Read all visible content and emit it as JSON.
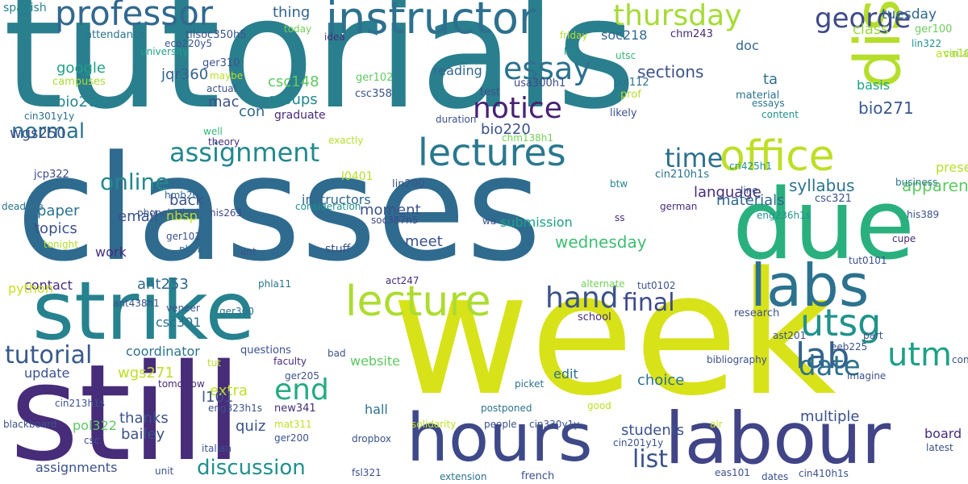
{
  "title": "",
  "colors": {
    "background": "#ffffff",
    "palette": [
      "#440154",
      "#3b528b",
      "#21908d",
      "#5dc963",
      "#fde725"
    ]
  },
  "words": [
    {
      "text": "tutorials",
      "color": "#2a7f8e"
    },
    {
      "text": "classes",
      "color": "#2f6b8e"
    },
    {
      "text": "week",
      "color": "#d8e219"
    },
    {
      "text": "still",
      "color": "#472c7a"
    },
    {
      "text": "due",
      "color": "#2ab07f"
    },
    {
      "text": "strike",
      "color": "#26828e"
    },
    {
      "text": "hours",
      "color": "#3e4989"
    },
    {
      "text": "labour",
      "color": "#414487"
    },
    {
      "text": "dispute",
      "color": "#b5de2b"
    },
    {
      "text": "labs",
      "color": "#2c728e"
    },
    {
      "text": "instructor",
      "color": "#2d708e"
    },
    {
      "text": "professor",
      "color": "#31688e"
    },
    {
      "text": "lectures",
      "color": "#2a788e"
    },
    {
      "text": "lecture",
      "color": "#addc30"
    },
    {
      "text": "office",
      "color": "#bddf26"
    },
    {
      "text": "thursday",
      "color": "#a5db36"
    },
    {
      "text": "assignment",
      "color": "#23888e"
    },
    {
      "text": "notice",
      "color": "#482173"
    },
    {
      "text": "essay",
      "color": "#2c728e"
    },
    {
      "text": "utsg",
      "color": "#20928c"
    },
    {
      "text": "lab",
      "color": "#33638d"
    },
    {
      "text": "date",
      "color": "#2d708e"
    },
    {
      "text": "utm",
      "color": "#1fa088"
    },
    {
      "text": "end",
      "color": "#25ab82"
    },
    {
      "text": "hand",
      "color": "#3b528b"
    },
    {
      "text": "final",
      "color": "#3e4989"
    },
    {
      "text": "list",
      "color": "#3b528b"
    },
    {
      "text": "tutorial",
      "color": "#38598c"
    },
    {
      "text": "george",
      "color": "#3e4989"
    },
    {
      "text": "online",
      "color": "#23898e"
    },
    {
      "text": "normal",
      "color": "#2c728e"
    },
    {
      "text": "time",
      "color": "#2d708e"
    },
    {
      "text": "discussion",
      "color": "#21908d"
    },
    {
      "text": "google",
      "color": "#1f9f88"
    },
    {
      "text": "wednesday",
      "color": "#40bd72"
    },
    {
      "text": "sections",
      "color": "#3b528b"
    },
    {
      "text": "spanish",
      "color": "#26828e"
    },
    {
      "text": "thing",
      "color": "#33638d"
    },
    {
      "text": "tuesday",
      "color": "#31688e"
    },
    {
      "text": "class",
      "color": "#9bd93c"
    },
    {
      "text": "ger100",
      "color": "#6ccd5a"
    },
    {
      "text": "soc218",
      "color": "#31688e"
    },
    {
      "text": "chm243",
      "color": "#482878"
    },
    {
      "text": "lin322",
      "color": "#21908d"
    },
    {
      "text": "cin105y1y",
      "color": "#73d056"
    },
    {
      "text": "attendance",
      "color": "#2c728e"
    },
    {
      "text": "tilsoc350h5",
      "color": "#3b528b"
    },
    {
      "text": "eco220y5",
      "color": "#39568c"
    },
    {
      "text": "idea",
      "color": "#472c7a"
    },
    {
      "text": "today",
      "color": "#73d056"
    },
    {
      "text": "friday",
      "color": "#b8de29"
    },
    {
      "text": "lot",
      "color": "#228c8d"
    },
    {
      "text": "utsc",
      "color": "#35b779"
    },
    {
      "text": "campuses",
      "color": "#a8db34"
    },
    {
      "text": "bio260",
      "color": "#25858e"
    },
    {
      "text": "cin301y1y",
      "color": "#2d708e"
    },
    {
      "text": "csc148",
      "color": "#5ec962"
    },
    {
      "text": "groups",
      "color": "#23888e"
    },
    {
      "text": "mac",
      "color": "#3b528b"
    },
    {
      "text": "con",
      "color": "#31688e"
    },
    {
      "text": "graduate",
      "color": "#482878"
    },
    {
      "text": "csc358",
      "color": "#3b528b"
    },
    {
      "text": "ger102",
      "color": "#5ec962"
    },
    {
      "text": "reading",
      "color": "#31688e"
    },
    {
      "text": "bio220",
      "color": "#3b528b"
    },
    {
      "text": "bio271",
      "color": "#38598c"
    },
    {
      "text": "basis",
      "color": "#20a386"
    },
    {
      "text": "available",
      "color": "#bddf26"
    },
    {
      "text": "ta",
      "color": "#2d708e"
    },
    {
      "text": "doc",
      "color": "#31688e"
    },
    {
      "text": "material",
      "color": "#2c728e"
    },
    {
      "text": "essays",
      "color": "#2a788e"
    },
    {
      "text": "content",
      "color": "#21908d"
    },
    {
      "text": "likely",
      "color": "#3b528b"
    },
    {
      "text": "prof",
      "color": "#b5de2b"
    },
    {
      "text": "pol112",
      "color": "#2c728e"
    },
    {
      "text": "usa300h1",
      "color": "#3e4989"
    },
    {
      "text": "test",
      "color": "#3b528b"
    },
    {
      "text": "jqr360",
      "color": "#33638d"
    },
    {
      "text": "university",
      "color": "#1fa088"
    },
    {
      "text": "maybe",
      "color": "#b8de29"
    },
    {
      "text": "actual",
      "color": "#3b528b"
    },
    {
      "text": "well",
      "color": "#35b779"
    },
    {
      "text": "theory",
      "color": "#472c7a"
    },
    {
      "text": "exactly",
      "color": "#b5de2b"
    },
    {
      "text": "ger310",
      "color": "#3b528b"
    },
    {
      "text": "wgs250",
      "color": "#3b528b"
    },
    {
      "text": "jcp322",
      "color": "#3e4989"
    },
    {
      "text": "duration",
      "color": "#3b528b"
    },
    {
      "text": "chm138h1",
      "color": "#73d056"
    },
    {
      "text": "cin210h1s",
      "color": "#2c728e"
    },
    {
      "text": "cri425h1",
      "color": "#21908d"
    },
    {
      "text": "presentations",
      "color": "#b5de2b"
    },
    {
      "text": "apparently",
      "color": "#5ec962"
    },
    {
      "text": "language",
      "color": "#472c7a"
    },
    {
      "text": "materials",
      "color": "#31688e"
    },
    {
      "text": "syllabus",
      "color": "#2c728e"
    },
    {
      "text": "csc321",
      "color": "#3b528b"
    },
    {
      "text": "line",
      "color": "#3b528b"
    },
    {
      "text": "business",
      "color": "#2a788e"
    },
    {
      "text": "l0401",
      "color": "#b5de2b"
    },
    {
      "text": "lin200",
      "color": "#3b528b"
    },
    {
      "text": "btw",
      "color": "#25858e"
    },
    {
      "text": "hmb202",
      "color": "#31688e"
    },
    {
      "text": "phonological",
      "color": "#3b528b"
    },
    {
      "text": "deadline",
      "color": "#2c728e"
    },
    {
      "text": "paper",
      "color": "#2c728e"
    },
    {
      "text": "topics",
      "color": "#3b528b"
    },
    {
      "text": "email",
      "color": "#3b528b"
    },
    {
      "text": "nbsp",
      "color": "#bddf26"
    },
    {
      "text": "back",
      "color": "#3b528b"
    },
    {
      "text": "his263",
      "color": "#3e4989"
    },
    {
      "text": "ger101",
      "color": "#3b528b"
    },
    {
      "text": "plan",
      "color": "#31688e"
    },
    {
      "text": "tonight",
      "color": "#b5de2b"
    },
    {
      "text": "work",
      "color": "#472c7a"
    },
    {
      "text": "moment",
      "color": "#3b528b"
    },
    {
      "text": "soc387h5",
      "color": "#3e4989"
    },
    {
      "text": "meet",
      "color": "#3b528b"
    },
    {
      "text": "stuff",
      "color": "#3b528b"
    },
    {
      "text": "instructors",
      "color": "#31688e"
    },
    {
      "text": "consideration",
      "color": "#21908d"
    },
    {
      "text": "submission",
      "color": "#1fa088"
    },
    {
      "text": "wa",
      "color": "#3b528b"
    },
    {
      "text": "ss",
      "color": "#472c7a"
    },
    {
      "text": "german",
      "color": "#472c7a"
    },
    {
      "text": "eng236h1s",
      "color": "#21908d"
    },
    {
      "text": "his389",
      "color": "#3b528b"
    },
    {
      "text": "cupe",
      "color": "#472c7a"
    },
    {
      "text": "tut0101",
      "color": "#3b528b"
    },
    {
      "text": "ant",
      "color": "#3b528b"
    },
    {
      "text": "contact",
      "color": "#472c7a"
    },
    {
      "text": "ant253",
      "color": "#31688e"
    },
    {
      "text": "phla11",
      "color": "#2c728e"
    },
    {
      "text": "act247",
      "color": "#472c7a"
    },
    {
      "text": "alternate",
      "color": "#73d056"
    },
    {
      "text": "tut0102",
      "color": "#3b528b"
    },
    {
      "text": "python",
      "color": "#c8e020"
    },
    {
      "text": "csc301",
      "color": "#2c728e"
    },
    {
      "text": "veneer",
      "color": "#3b528b"
    },
    {
      "text": "ant438h1",
      "color": "#3b528b"
    },
    {
      "text": "coordinator",
      "color": "#2c728e"
    },
    {
      "text": "ger300",
      "color": "#2c728e"
    },
    {
      "text": "questions",
      "color": "#3b528b"
    },
    {
      "text": "school",
      "color": "#472c7a"
    },
    {
      "text": "research",
      "color": "#3b528b"
    },
    {
      "text": "ast201",
      "color": "#3b528b"
    },
    {
      "text": "part",
      "color": "#3b528b"
    },
    {
      "text": "update",
      "color": "#3b528b"
    },
    {
      "text": "wgs271",
      "color": "#bddf26"
    },
    {
      "text": "bad",
      "color": "#3b528b"
    },
    {
      "text": "faculty",
      "color": "#472c7a"
    },
    {
      "text": "tut",
      "color": "#bddf26"
    },
    {
      "text": "tomorrow",
      "color": "#472c7a"
    },
    {
      "text": "ger205",
      "color": "#3b528b"
    },
    {
      "text": "website",
      "color": "#5ec962"
    },
    {
      "text": "edit",
      "color": "#2c728e"
    },
    {
      "text": "choice",
      "color": "#2c728e"
    },
    {
      "text": "bibliography",
      "color": "#3b528b"
    },
    {
      "text": "eeb225",
      "color": "#3b528b"
    },
    {
      "text": "continuing",
      "color": "#3b528b"
    },
    {
      "text": "extra",
      "color": "#bddf26"
    },
    {
      "text": "l101",
      "color": "#3b528b"
    },
    {
      "text": "eng323h1s",
      "color": "#3b528b"
    },
    {
      "text": "new341",
      "color": "#472c7a"
    },
    {
      "text": "hall",
      "color": "#2c728e"
    },
    {
      "text": "imagine",
      "color": "#3b528b"
    },
    {
      "text": "cin213h1s",
      "color": "#3b528b"
    },
    {
      "text": "thanks",
      "color": "#3b528b"
    },
    {
      "text": "quiz",
      "color": "#3b528b"
    },
    {
      "text": "students",
      "color": "#3b528b"
    },
    {
      "text": "multiple",
      "color": "#3b528b"
    },
    {
      "text": "blackboard",
      "color": "#3b528b"
    },
    {
      "text": "pol322",
      "color": "#5ec962"
    },
    {
      "text": "bailey",
      "color": "#3b528b"
    },
    {
      "text": "csc",
      "color": "#3b528b"
    },
    {
      "text": "mat311",
      "color": "#bddf26"
    },
    {
      "text": "ger200",
      "color": "#3b528b"
    },
    {
      "text": "italian",
      "color": "#3b528b"
    },
    {
      "text": "postponed",
      "color": "#2c728e"
    },
    {
      "text": "picket",
      "color": "#2c728e"
    },
    {
      "text": "good",
      "color": "#bddf26"
    },
    {
      "text": "air",
      "color": "#bddf26"
    },
    {
      "text": "board",
      "color": "#472c7a"
    },
    {
      "text": "latest",
      "color": "#3b528b"
    },
    {
      "text": "solidarity",
      "color": "#bddf26"
    },
    {
      "text": "people",
      "color": "#3b528b"
    },
    {
      "text": "cin330y1y",
      "color": "#3b528b"
    },
    {
      "text": "dropbox",
      "color": "#3b528b"
    },
    {
      "text": "cin201y1y",
      "color": "#3b528b"
    },
    {
      "text": "assignments",
      "color": "#3b528b"
    },
    {
      "text": "unit",
      "color": "#3b528b"
    },
    {
      "text": "fsl321",
      "color": "#3b528b"
    },
    {
      "text": "extension",
      "color": "#2c728e"
    },
    {
      "text": "french",
      "color": "#3b528b"
    },
    {
      "text": "eas101",
      "color": "#3b528b"
    },
    {
      "text": "dates",
      "color": "#3b528b"
    },
    {
      "text": "cin410h1s",
      "color": "#3b528b"
    }
  ]
}
